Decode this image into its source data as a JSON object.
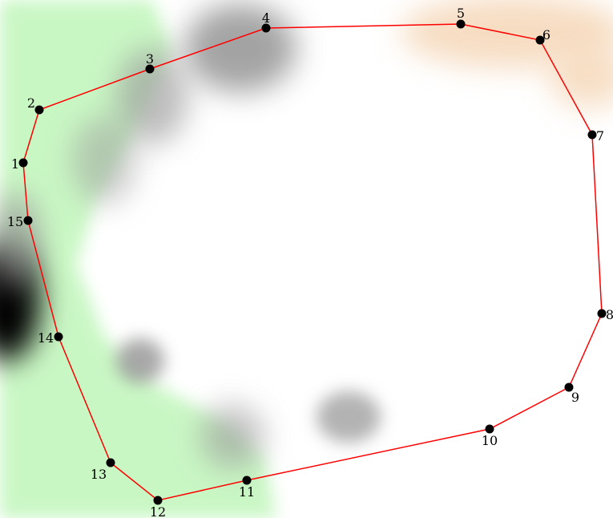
{
  "colors": {
    "polygon_stroke": "#ff0000",
    "vertex_fill": "#000000",
    "vegetation": "#c9f7c4",
    "terrain_dark": "#000000",
    "terrain_mid": "#9a9a9a",
    "sand": "#f5d7b8"
  },
  "vertices": [
    {
      "label": "1"
    },
    {
      "label": "2"
    },
    {
      "label": "3"
    },
    {
      "label": "4"
    },
    {
      "label": "5"
    },
    {
      "label": "6"
    },
    {
      "label": "7"
    },
    {
      "label": "8"
    },
    {
      "label": "9"
    },
    {
      "label": "10"
    },
    {
      "label": "11"
    },
    {
      "label": "12"
    },
    {
      "label": "13"
    },
    {
      "label": "14"
    },
    {
      "label": "15"
    }
  ]
}
